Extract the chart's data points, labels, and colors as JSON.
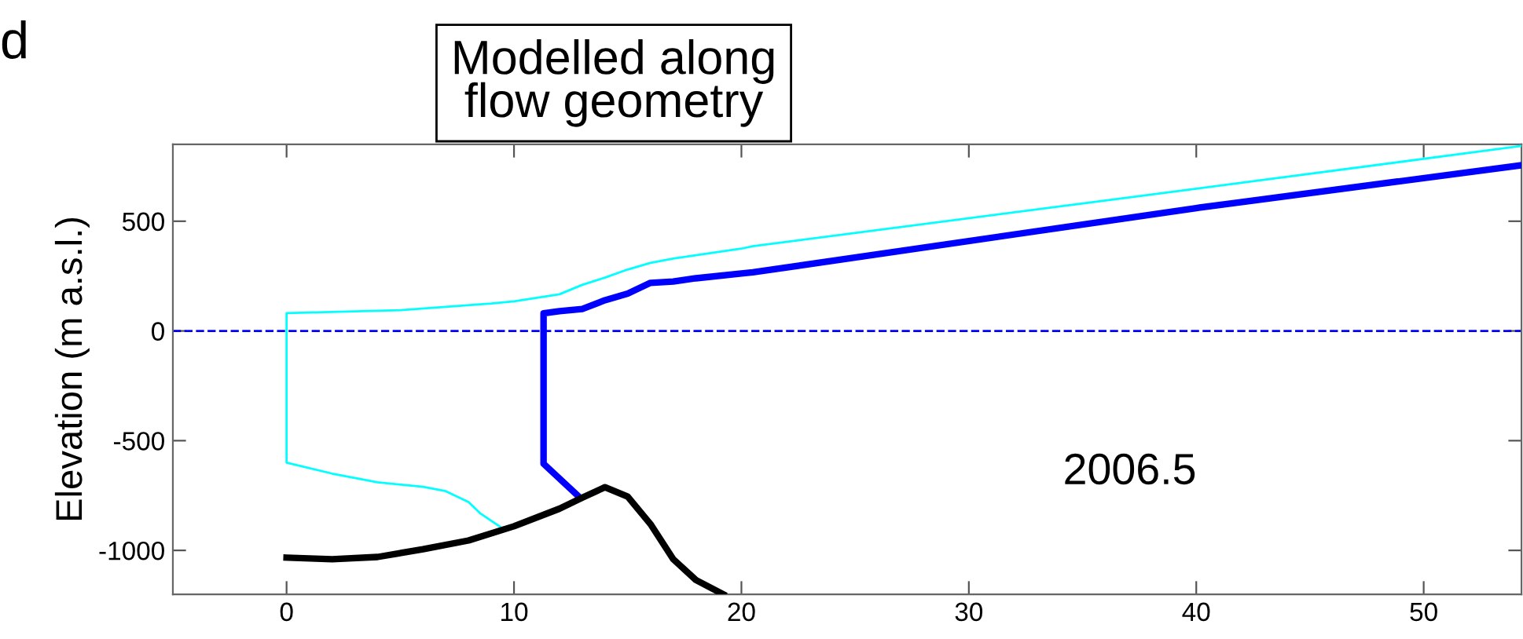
{
  "chart_data": {
    "type": "line",
    "title": "Modelled along\nflow geometry",
    "ylabel": "Elevation (m a.s.l.)",
    "annotations": [
      "2006.5",
      "d"
    ],
    "xlim": [
      -5,
      54.3
    ],
    "ylim": [
      -1200,
      850
    ],
    "xticks": [
      0,
      10,
      20,
      30,
      40,
      50
    ],
    "yticks": [
      -1000,
      -500,
      0,
      500
    ],
    "grid": false,
    "legend": false,
    "line_style": "solid",
    "marker": "none",
    "ref_lines": [
      {
        "axis": "y",
        "value": 0,
        "color": "#0000ff",
        "line_style": "dashed"
      }
    ],
    "series": [
      {
        "color": "#00ffff",
        "x": [
          9.5,
          8.5,
          8,
          7,
          6,
          4,
          2,
          0,
          0,
          5,
          7,
          9,
          10,
          12,
          13,
          14,
          15,
          16,
          17,
          20,
          20.5,
          40,
          54.3
        ],
        "values": [
          -900,
          -830,
          -780,
          -730,
          -710,
          -690,
          -650,
          -600,
          81,
          95,
          110,
          125,
          135,
          167,
          210,
          243,
          280,
          310,
          330,
          375,
          386,
          648,
          843
        ]
      },
      {
        "color": "#0000ff",
        "x": [
          12.8,
          11.3,
          11.3,
          12,
          13,
          14,
          15,
          16,
          17,
          18,
          20,
          20.5,
          40,
          54.3
        ],
        "values": [
          -750,
          -605,
          80,
          90,
          100,
          140,
          170,
          219,
          225,
          240,
          262,
          267,
          560,
          755
        ]
      },
      {
        "color": "#000000",
        "x": [
          0,
          2,
          4,
          6,
          8,
          10,
          12,
          13,
          14,
          15,
          16,
          17,
          18,
          19.2
        ],
        "values": [
          -1033,
          -1040,
          -1030,
          -995,
          -955,
          -890,
          -810,
          -760,
          -712,
          -755,
          -880,
          -1040,
          -1135,
          -1200
        ]
      }
    ]
  }
}
